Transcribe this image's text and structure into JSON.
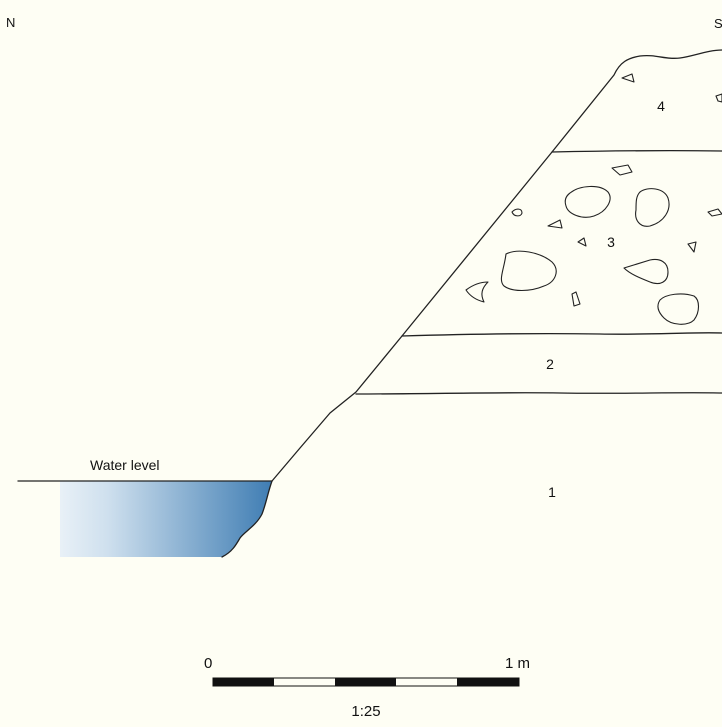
{
  "orientation": {
    "left": "N",
    "right": "S"
  },
  "layers": [
    {
      "id": "layer-1",
      "label": "1"
    },
    {
      "id": "layer-2",
      "label": "2"
    },
    {
      "id": "layer-3",
      "label": "3"
    },
    {
      "id": "layer-4",
      "label": "4"
    }
  ],
  "water": {
    "label": "Water level",
    "colors": {
      "deep": "#3f7db3",
      "light": "#ffffff"
    }
  },
  "scale_bar": {
    "start_label": "0",
    "end_label": "1 m",
    "ratio_label": "1:25"
  }
}
